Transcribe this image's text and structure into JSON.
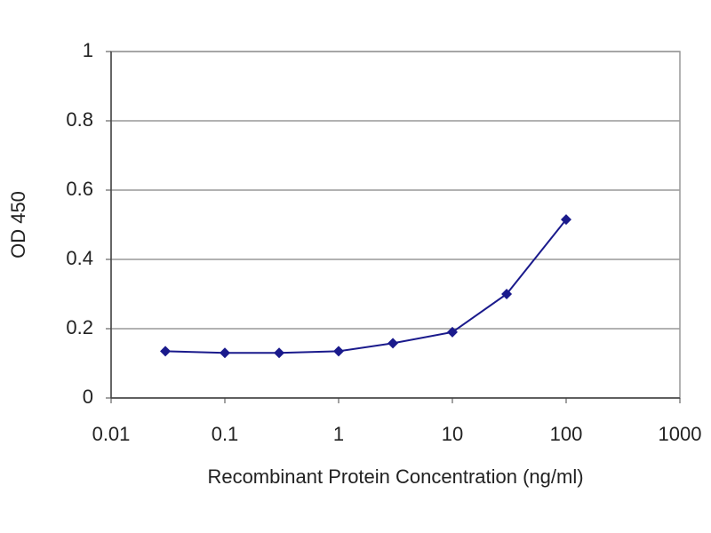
{
  "chart_data": {
    "type": "line",
    "x_label": "Recombinant Protein Concentration (ng/ml)",
    "y_label": "OD 450",
    "x": [
      0.03,
      0.1,
      0.3,
      1,
      3,
      10,
      30,
      100
    ],
    "values": [
      0.135,
      0.13,
      0.13,
      0.135,
      0.158,
      0.19,
      0.3,
      0.515
    ],
    "color": "#1a1a8c",
    "xlog": true,
    "xlim": [
      0.01,
      1000
    ],
    "xticks": [
      0.01,
      0.1,
      1,
      10,
      100,
      1000
    ],
    "ylim": [
      0,
      1
    ],
    "yticks": [
      0,
      0.2,
      0.4,
      0.6,
      0.8,
      1
    ],
    "grid": true
  }
}
